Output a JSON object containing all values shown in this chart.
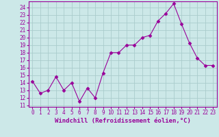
{
  "x": [
    0,
    1,
    2,
    3,
    4,
    5,
    6,
    7,
    8,
    9,
    10,
    11,
    12,
    13,
    14,
    15,
    16,
    17,
    18,
    19,
    20,
    21,
    22,
    23
  ],
  "y": [
    14.2,
    12.6,
    13.0,
    14.8,
    13.0,
    14.0,
    11.5,
    13.3,
    12.0,
    15.3,
    18.0,
    18.0,
    19.0,
    19.0,
    20.0,
    20.3,
    22.2,
    23.2,
    24.5,
    21.8,
    19.3,
    17.3,
    16.3,
    16.3
  ],
  "line_color": "#990099",
  "marker": "D",
  "marker_size": 2.5,
  "bg_color": "#cce8e8",
  "grid_color": "#aacccc",
  "xlabel": "Windchill (Refroidissement éolien,°C)",
  "ylabel_left_ticks": [
    11,
    12,
    13,
    14,
    15,
    16,
    17,
    18,
    19,
    20,
    21,
    22,
    23,
    24
  ],
  "ylim": [
    10.8,
    24.8
  ],
  "xlim": [
    -0.5,
    23.5
  ],
  "xticks": [
    0,
    1,
    2,
    3,
    4,
    5,
    6,
    7,
    8,
    9,
    10,
    11,
    12,
    13,
    14,
    15,
    16,
    17,
    18,
    19,
    20,
    21,
    22,
    23
  ],
  "tick_color": "#990099",
  "label_fontsize": 6.5,
  "tick_fontsize": 5.5
}
